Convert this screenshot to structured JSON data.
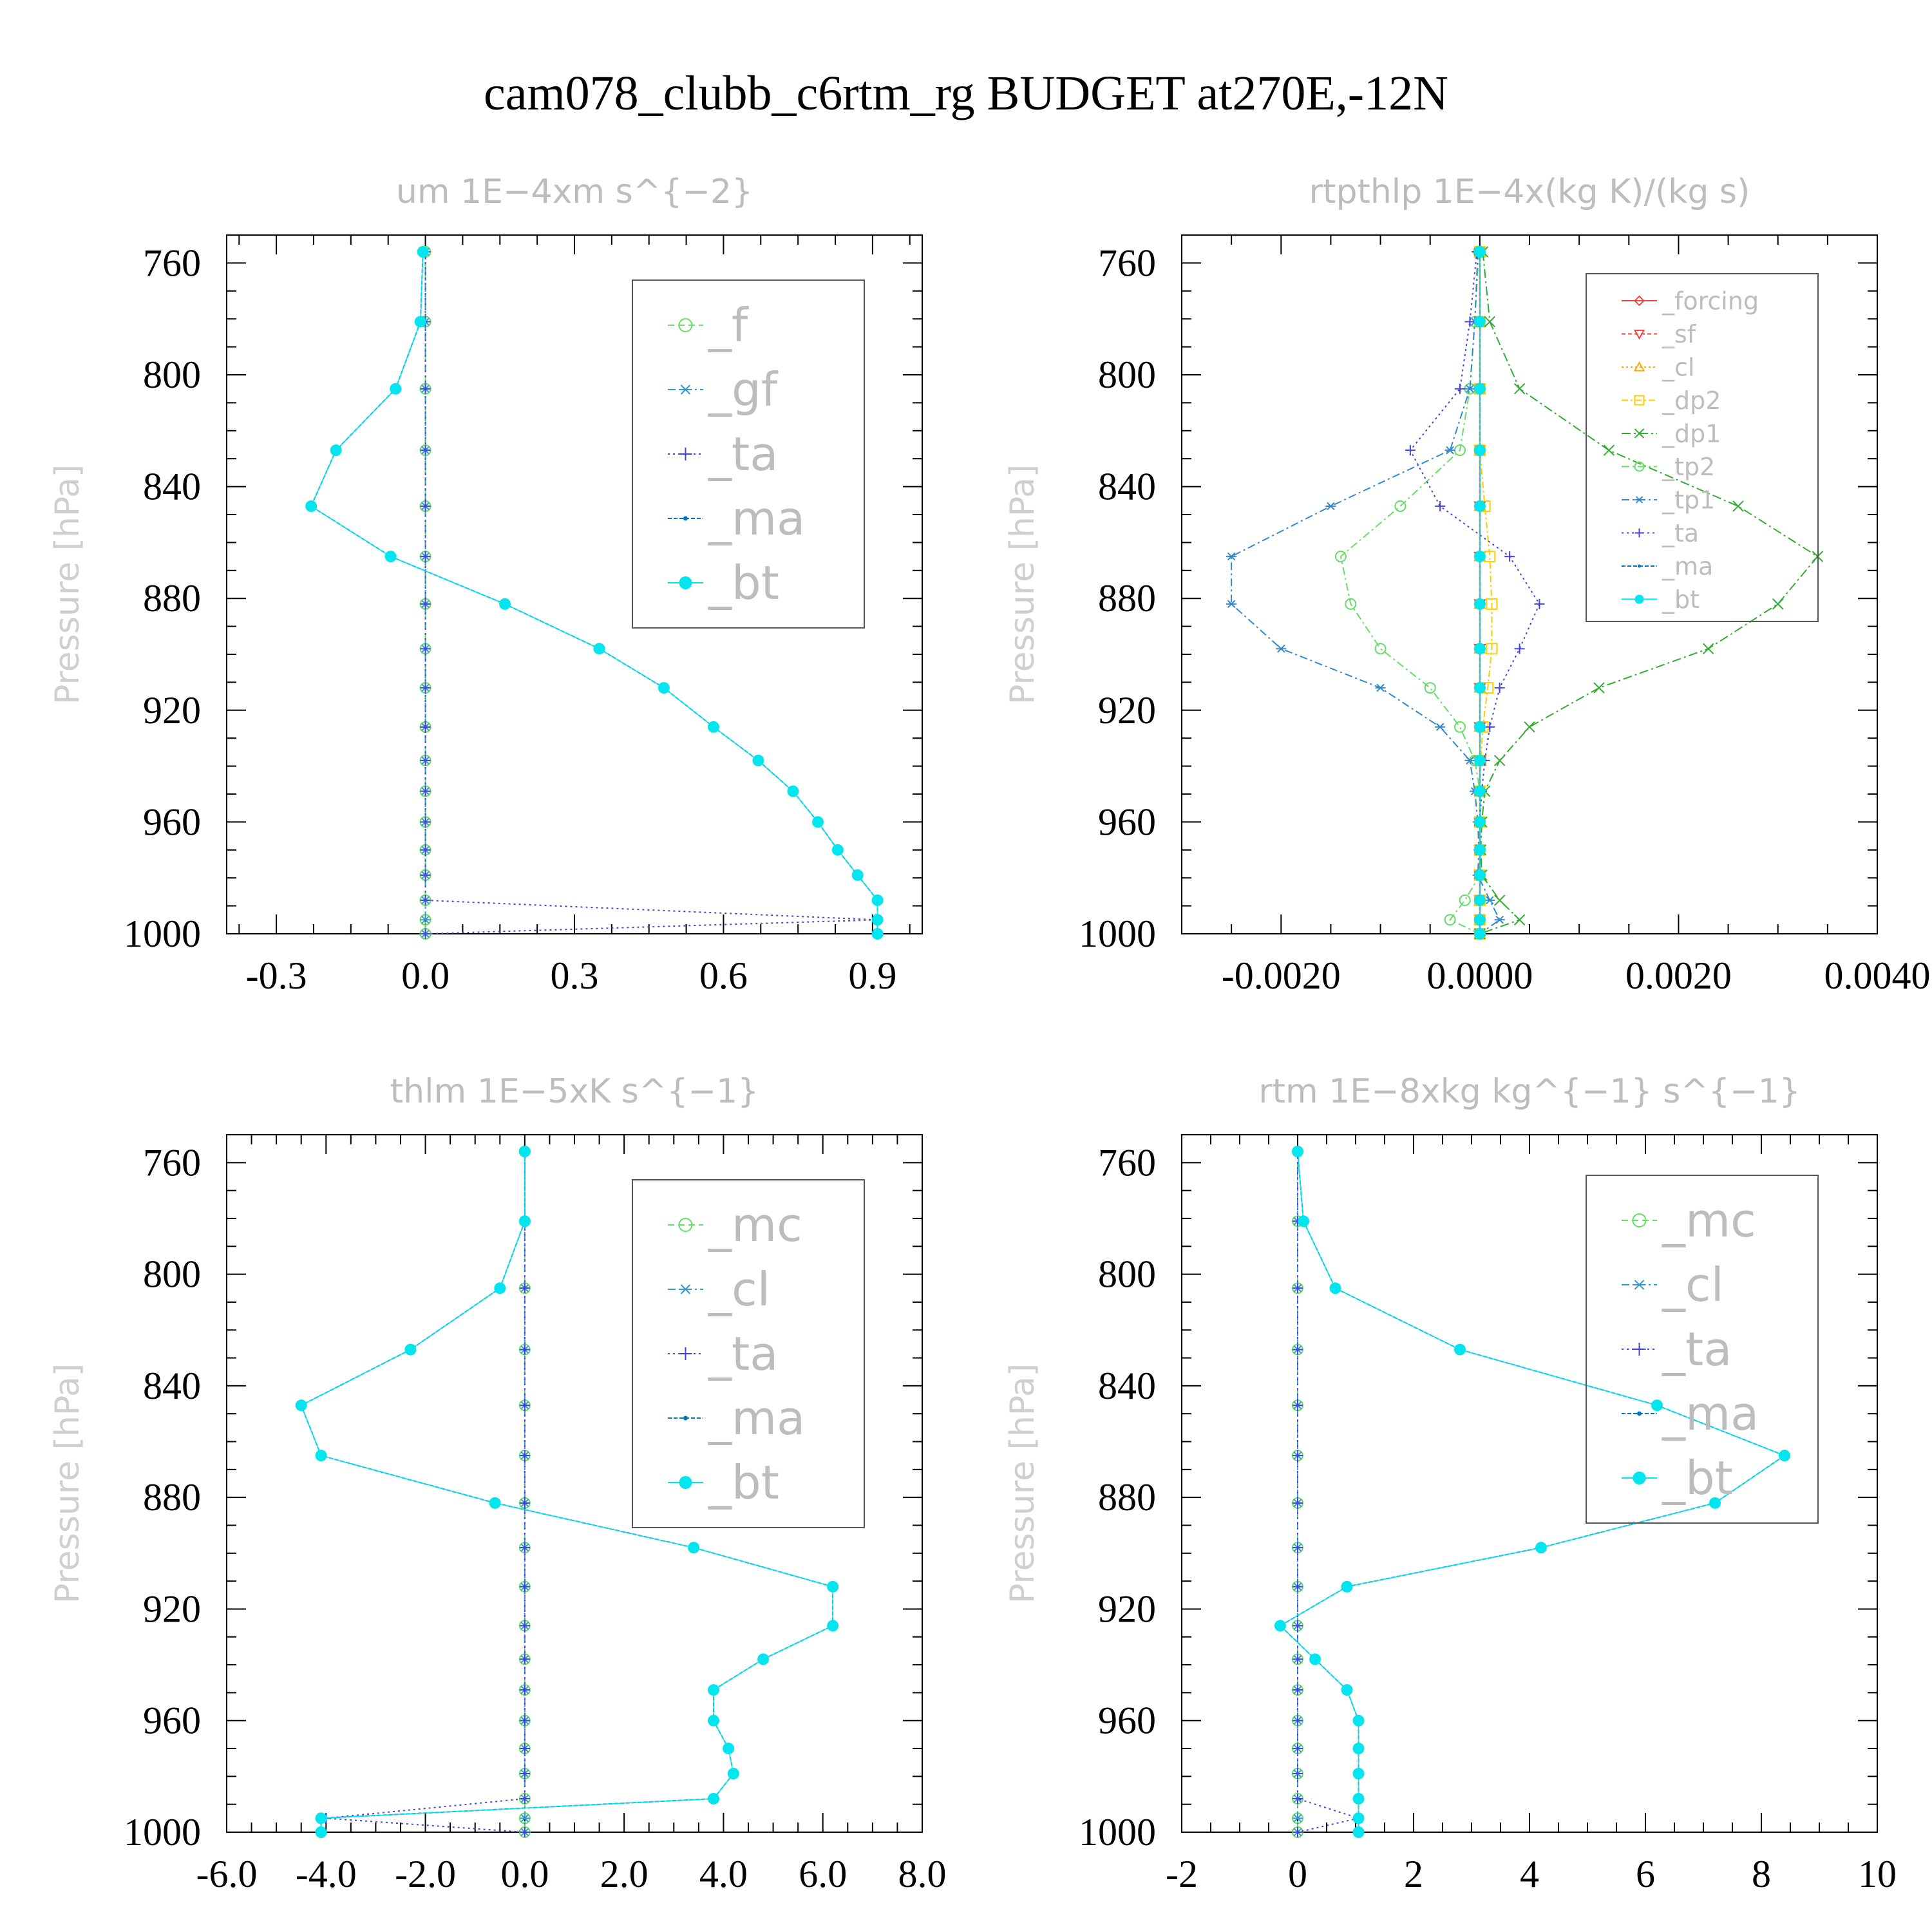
{
  "title": "cam078_clubb_c6rtm_rg  BUDGET at270E,-12N",
  "chart_data": [
    {
      "id": "um",
      "type": "line",
      "title": "um   1E−4xm s^{−2}",
      "ylabel": "Pressure [hPa]",
      "xlim": [
        -0.4,
        1.0
      ],
      "xticks": [
        -0.3,
        0.0,
        0.3,
        0.6,
        0.9
      ],
      "xtick_labels": [
        "-0.3",
        "0.0",
        "0.3",
        "0.6",
        "0.9"
      ],
      "ylim": [
        750,
        1000
      ],
      "yticks": [
        760,
        800,
        840,
        880,
        920,
        960,
        1000
      ],
      "legend_position": "top-right",
      "levels": [
        756,
        781,
        805,
        827,
        847,
        865,
        882,
        898,
        912,
        926,
        938,
        949,
        960,
        970,
        979,
        988,
        995,
        1000
      ],
      "series": [
        {
          "name": "_f",
          "color": "#66dd66",
          "marker": "circle",
          "dash": "10,6",
          "values": [
            0,
            0,
            0,
            0,
            0,
            0,
            0,
            0,
            0,
            0,
            0,
            0,
            0,
            0,
            0,
            0,
            0,
            0
          ]
        },
        {
          "name": "_gf",
          "color": "#3399cc",
          "marker": "star",
          "dash": "12,5,3,5",
          "values": [
            0,
            0,
            0,
            0,
            0,
            0,
            0,
            0,
            0,
            0,
            0,
            0,
            0,
            0,
            0,
            0,
            0,
            0
          ]
        },
        {
          "name": "_ta",
          "color": "#4444dd",
          "marker": "plus",
          "dash": "3,5",
          "values": [
            0,
            0,
            0,
            0,
            0,
            0,
            0,
            0,
            0,
            0,
            0,
            0,
            0,
            0,
            0,
            0,
            0.91,
            0
          ]
        },
        {
          "name": "_ma",
          "color": "#0077bb",
          "marker": "dot",
          "dash": "6,3",
          "values": [
            -0.005,
            -0.01,
            -0.06,
            -0.18,
            -0.23,
            -0.07,
            0.16,
            0.35,
            0.48,
            0.58,
            0.67,
            0.74,
            0.79,
            0.83,
            0.87,
            0.91,
            0.91,
            0.91
          ]
        },
        {
          "name": "_bt",
          "color": "#00e5ee",
          "marker": "filled",
          "dash": "",
          "values": [
            -0.005,
            -0.01,
            -0.06,
            -0.18,
            -0.23,
            -0.07,
            0.16,
            0.35,
            0.48,
            0.58,
            0.67,
            0.74,
            0.79,
            0.83,
            0.87,
            0.91,
            0.91,
            0.91
          ]
        }
      ]
    },
    {
      "id": "rtpthlp",
      "type": "line",
      "title": "rtpthlp   1E−4x(kg K)/(kg s)",
      "ylabel": "Pressure [hPa]",
      "xlim": [
        -0.003,
        0.004
      ],
      "xticks": [
        -0.002,
        0.0,
        0.002,
        0.004
      ],
      "xtick_labels": [
        "-0.0020",
        "0.0000",
        "0.0020",
        "0.0040"
      ],
      "ylim": [
        750,
        1000
      ],
      "yticks": [
        760,
        800,
        840,
        880,
        920,
        960,
        1000
      ],
      "legend_position": "top-right",
      "levels": [
        756,
        781,
        805,
        827,
        847,
        865,
        882,
        898,
        912,
        926,
        938,
        949,
        960,
        970,
        979,
        988,
        995,
        1000
      ],
      "series": [
        {
          "name": "_forcing",
          "color": "#ee4444",
          "marker": "diamond",
          "dash": "",
          "values": [
            0,
            0,
            0,
            0,
            0,
            0,
            0,
            0,
            0,
            0,
            0,
            0,
            0,
            0,
            0,
            0,
            0,
            0
          ]
        },
        {
          "name": "_sf",
          "color": "#ee4444",
          "marker": "tri-down",
          "dash": "6,4",
          "values": [
            0,
            0,
            0,
            0,
            0,
            0,
            0,
            0,
            0,
            0,
            0,
            0,
            0,
            0,
            0,
            0,
            0,
            0
          ]
        },
        {
          "name": "_cl",
          "color": "#ffaa00",
          "marker": "tri-up",
          "dash": "3,4",
          "values": [
            0,
            0,
            0,
            0,
            0,
            0,
            0,
            0,
            0,
            0,
            0,
            0,
            0,
            0,
            0,
            0,
            0,
            0
          ]
        },
        {
          "name": "_dp2",
          "color": "#ffcc00",
          "marker": "square",
          "dash": "10,4,3,4",
          "values": [
            0,
            0,
            0,
            0,
            5e-05,
            0.0001,
            0.00012,
            0.00012,
            8e-05,
            3e-05,
            1e-05,
            0,
            0,
            0,
            0,
            0,
            0,
            0
          ]
        },
        {
          "name": "_dp1",
          "color": "#33aa33",
          "marker": "cross",
          "dash": "14,5,3,5",
          "values": [
            3e-05,
            0.0001,
            0.0004,
            0.0013,
            0.0026,
            0.0034,
            0.003,
            0.0023,
            0.0012,
            0.0005,
            0.0002,
            5e-05,
            2e-05,
            1e-05,
            2e-05,
            0.0002,
            0.0004,
            0
          ]
        },
        {
          "name": "_tp2",
          "color": "#66dd66",
          "marker": "circle",
          "dash": "12,5,3,5",
          "values": [
            -1e-05,
            -5e-05,
            -0.0001,
            -0.0002,
            -0.0008,
            -0.0014,
            -0.0013,
            -0.001,
            -0.0005,
            -0.0002,
            -5e-05,
            0,
            0,
            0,
            0,
            -0.00015,
            -0.0003,
            0
          ]
        },
        {
          "name": "_tp1",
          "color": "#3388cc",
          "marker": "star",
          "dash": "12,5,3,5",
          "values": [
            -2e-05,
            -5e-05,
            -0.0001,
            -0.0003,
            -0.0015,
            -0.0025,
            -0.0025,
            -0.002,
            -0.001,
            -0.0004,
            -0.0001,
            -5e-05,
            -2e-05,
            -1e-05,
            -2e-05,
            0.0001,
            0.0002,
            0
          ]
        },
        {
          "name": "_ta",
          "color": "#4444dd",
          "marker": "plus",
          "dash": "3,5",
          "values": [
            -3e-05,
            -0.0001,
            -0.0002,
            -0.0007,
            -0.0004,
            0.0003,
            0.0006,
            0.0004,
            0.0002,
            0.0001,
            5e-05,
            2e-05,
            0,
            0,
            0,
            0,
            0,
            0
          ]
        },
        {
          "name": "_ma",
          "color": "#0077bb",
          "marker": "dot",
          "dash": "6,3",
          "values": [
            0,
            0,
            0,
            0,
            0,
            0,
            0,
            0,
            0,
            0,
            0,
            0,
            0,
            0,
            0,
            0,
            0,
            0
          ]
        },
        {
          "name": "_bt",
          "color": "#00e5ee",
          "marker": "filled",
          "dash": "",
          "values": [
            0,
            0,
            0,
            0,
            0,
            0,
            0,
            0,
            0,
            0,
            0,
            0,
            0,
            0,
            0,
            0,
            0,
            0
          ]
        }
      ]
    },
    {
      "id": "thlm",
      "type": "line",
      "title": "thlm   1E−5xK s^{−1}",
      "ylabel": "Pressure [hPa]",
      "xlim": [
        -6.0,
        8.0
      ],
      "xticks": [
        -6.0,
        -4.0,
        -2.0,
        0.0,
        2.0,
        4.0,
        6.0,
        8.0
      ],
      "xtick_labels": [
        "-6.0",
        "-4.0",
        "-2.0",
        "0.0",
        "2.0",
        "4.0",
        "6.0",
        "8.0"
      ],
      "ylim": [
        750,
        1000
      ],
      "yticks": [
        760,
        800,
        840,
        880,
        920,
        960,
        1000
      ],
      "legend_position": "top-right",
      "levels": [
        756,
        781,
        805,
        827,
        847,
        865,
        882,
        898,
        912,
        926,
        938,
        949,
        960,
        970,
        979,
        988,
        995,
        1000
      ],
      "series": [
        {
          "name": "_mc",
          "color": "#66dd66",
          "marker": "circle",
          "dash": "10,6",
          "values": [
            0,
            0,
            0,
            0,
            0,
            0,
            0,
            0,
            0,
            0,
            0,
            0,
            0,
            0,
            0,
            0,
            0,
            0
          ]
        },
        {
          "name": "_cl",
          "color": "#3399cc",
          "marker": "star",
          "dash": "12,5,3,5",
          "values": [
            0,
            0,
            0,
            0,
            0,
            0,
            0,
            0,
            0,
            0,
            0,
            0,
            0,
            0,
            0,
            0,
            0,
            0
          ]
        },
        {
          "name": "_ta",
          "color": "#4444dd",
          "marker": "plus",
          "dash": "3,5",
          "values": [
            0,
            0,
            0,
            0,
            0,
            0,
            0,
            0,
            0,
            0,
            0,
            0,
            0,
            0,
            0,
            0,
            -4.0,
            0
          ]
        },
        {
          "name": "_ma",
          "color": "#0077bb",
          "marker": "dot",
          "dash": "6,3",
          "values": [
            0,
            0,
            -0.5,
            -2.3,
            -4.5,
            -4.1,
            -0.6,
            3.4,
            6.2,
            6.2,
            4.8,
            3.8,
            3.8,
            4.1,
            4.2,
            3.8,
            -4.1,
            -4.1
          ]
        },
        {
          "name": "_bt",
          "color": "#00e5ee",
          "marker": "filled",
          "dash": "",
          "values": [
            0,
            0,
            -0.5,
            -2.3,
            -4.5,
            -4.1,
            -0.6,
            3.4,
            6.2,
            6.2,
            4.8,
            3.8,
            3.8,
            4.1,
            4.2,
            3.8,
            -4.1,
            -4.1
          ]
        }
      ]
    },
    {
      "id": "rtm",
      "type": "line",
      "title": "rtm   1E−8xkg kg^{−1} s^{−1}",
      "ylabel": "Pressure [hPa]",
      "xlim": [
        -2,
        10
      ],
      "xticks": [
        -2,
        0,
        2,
        4,
        6,
        8,
        10
      ],
      "xtick_labels": [
        "-2",
        "0",
        "2",
        "4",
        "6",
        "8",
        "10"
      ],
      "ylim": [
        750,
        1000
      ],
      "yticks": [
        760,
        800,
        840,
        880,
        920,
        960,
        1000
      ],
      "legend_position": "top-right",
      "levels": [
        756,
        781,
        805,
        827,
        847,
        865,
        882,
        898,
        912,
        926,
        938,
        949,
        960,
        970,
        979,
        988,
        995,
        1000
      ],
      "series": [
        {
          "name": "_mc",
          "color": "#66dd66",
          "marker": "circle",
          "dash": "10,6",
          "values": [
            0,
            0,
            0,
            0,
            0,
            0,
            0,
            0,
            0,
            0,
            0,
            0,
            0,
            0,
            0,
            0,
            0,
            0
          ]
        },
        {
          "name": "_cl",
          "color": "#3399cc",
          "marker": "star",
          "dash": "12,5,3,5",
          "values": [
            0,
            0,
            0,
            0,
            0,
            0,
            0,
            0,
            0,
            0,
            0,
            0,
            0,
            0,
            0,
            0,
            0,
            0
          ]
        },
        {
          "name": "_ta",
          "color": "#4444dd",
          "marker": "plus",
          "dash": "3,5",
          "values": [
            0,
            0,
            0,
            0,
            0,
            0,
            0,
            0,
            0,
            0,
            0,
            0,
            0,
            0,
            0,
            0,
            1.05,
            0
          ]
        },
        {
          "name": "_ma",
          "color": "#0077bb",
          "marker": "dot",
          "dash": "6,3",
          "values": [
            0,
            0.1,
            0.65,
            2.8,
            6.2,
            8.4,
            7.2,
            4.2,
            0.85,
            -0.3,
            0.3,
            0.85,
            1.05,
            1.05,
            1.05,
            1.05,
            1.05,
            1.05
          ]
        },
        {
          "name": "_bt",
          "color": "#00e5ee",
          "marker": "filled",
          "dash": "",
          "values": [
            0,
            0.1,
            0.65,
            2.8,
            6.2,
            8.4,
            7.2,
            4.2,
            0.85,
            -0.3,
            0.3,
            0.85,
            1.05,
            1.05,
            1.05,
            1.05,
            1.05,
            1.05
          ]
        }
      ]
    }
  ]
}
